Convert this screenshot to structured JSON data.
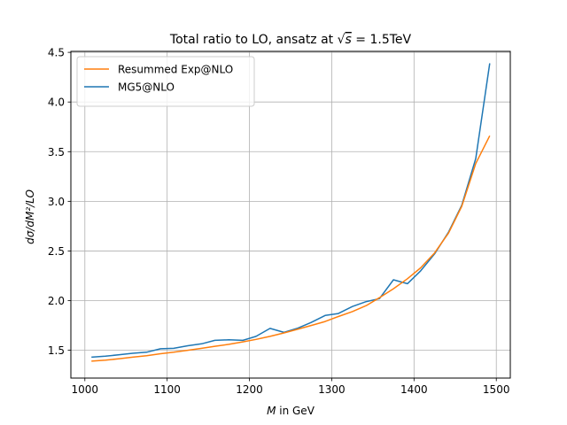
{
  "chart_data": {
    "type": "line",
    "title_prefix": "Total ratio to LO, ansatz at ",
    "title_sqrt_var": "s",
    "title_suffix": " = 1.5TeV",
    "xlabel_var": "M",
    "xlabel_rest": " in GeV",
    "ylabel": "dσ/dM²/LO",
    "xlim": [
      983,
      1517
    ],
    "ylim": [
      1.22,
      4.51
    ],
    "xticks": [
      1000,
      1100,
      1200,
      1300,
      1400,
      1500
    ],
    "yticks": [
      1.5,
      2.0,
      2.5,
      3.0,
      3.5,
      4.0,
      4.5
    ],
    "xtick_labels": [
      "1000",
      "1100",
      "1200",
      "1300",
      "1400",
      "1500"
    ],
    "ytick_labels": [
      "1.5",
      "2.0",
      "2.5",
      "3.0",
      "3.5",
      "4.0",
      "4.5"
    ],
    "grid": true,
    "legend_position": "top-left",
    "series": [
      {
        "name": "Resummed Exp@NLO",
        "color": "#ff7f0e",
        "x": [
          1008,
          1025,
          1042,
          1058,
          1075,
          1092,
          1108,
          1125,
          1142,
          1158,
          1175,
          1192,
          1208,
          1225,
          1242,
          1258,
          1275,
          1292,
          1308,
          1325,
          1342,
          1358,
          1375,
          1392,
          1408,
          1425,
          1442,
          1458,
          1475,
          1492
        ],
        "y": [
          1.39,
          1.4,
          1.415,
          1.43,
          1.445,
          1.465,
          1.48,
          1.5,
          1.52,
          1.54,
          1.56,
          1.585,
          1.61,
          1.64,
          1.675,
          1.71,
          1.75,
          1.79,
          1.84,
          1.89,
          1.95,
          2.03,
          2.12,
          2.22,
          2.33,
          2.48,
          2.68,
          2.95,
          3.38,
          3.66
        ]
      },
      {
        "name": "MG5@NLO",
        "color": "#1f77b4",
        "x": [
          1008,
          1025,
          1042,
          1058,
          1075,
          1092,
          1108,
          1125,
          1142,
          1158,
          1175,
          1192,
          1208,
          1225,
          1242,
          1258,
          1275,
          1292,
          1308,
          1325,
          1342,
          1358,
          1375,
          1392,
          1408,
          1425,
          1442,
          1458,
          1475,
          1492
        ],
        "y": [
          1.43,
          1.44,
          1.455,
          1.47,
          1.48,
          1.515,
          1.52,
          1.545,
          1.565,
          1.6,
          1.605,
          1.6,
          1.64,
          1.72,
          1.68,
          1.72,
          1.78,
          1.85,
          1.87,
          1.94,
          1.99,
          2.02,
          2.21,
          2.17,
          2.3,
          2.47,
          2.69,
          2.96,
          3.43,
          4.39
        ]
      }
    ]
  }
}
